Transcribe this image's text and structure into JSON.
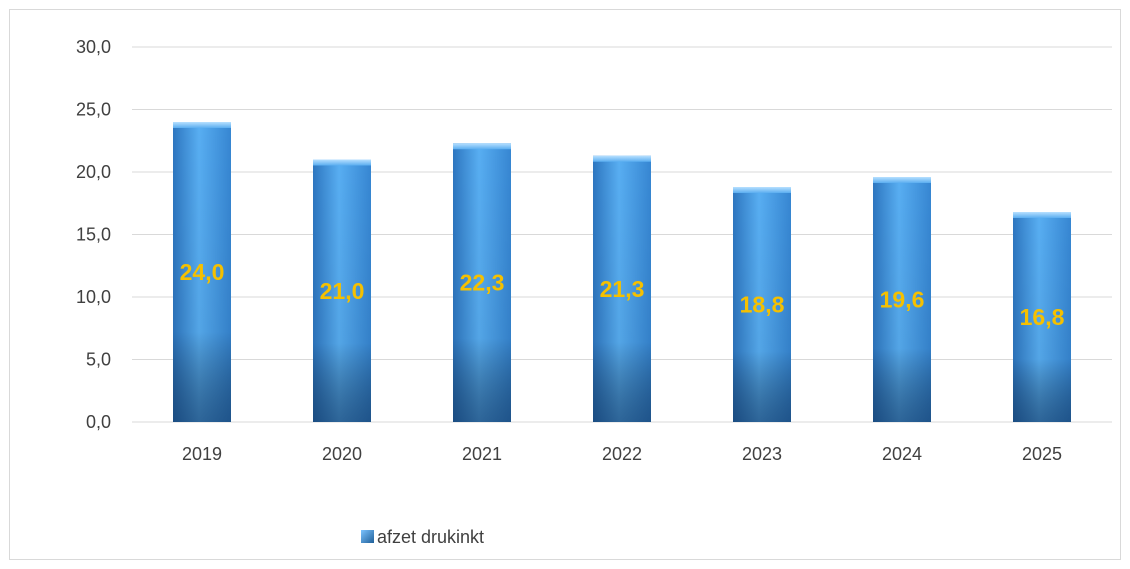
{
  "chart_data": {
    "type": "bar",
    "title": "",
    "xlabel": "",
    "ylabel": "",
    "categories": [
      "2019",
      "2020",
      "2021",
      "2022",
      "2023",
      "2024",
      "2025"
    ],
    "series": [
      {
        "name": "afzet drukinkt",
        "values": [
          24.0,
          21.0,
          22.3,
          21.3,
          18.8,
          19.6,
          16.8
        ]
      }
    ],
    "data_labels": [
      "24,0",
      "21,0",
      "22,3",
      "21,3",
      "18,8",
      "19,6",
      "16,8"
    ],
    "ylim": [
      0,
      30
    ],
    "yticks": [
      0,
      5,
      10,
      15,
      20,
      25,
      30
    ],
    "ytick_labels": [
      "0,0",
      "5,0",
      "10,0",
      "15,0",
      "20,0",
      "25,0",
      "30,0"
    ],
    "grid": true,
    "legend_position": "bottom",
    "colors": {
      "bar": "#4a9fe8",
      "bar_dark": "#1f5f98",
      "data_label": "#f5c000",
      "grid": "#d9d9d9",
      "axis_text": "#404040"
    }
  }
}
